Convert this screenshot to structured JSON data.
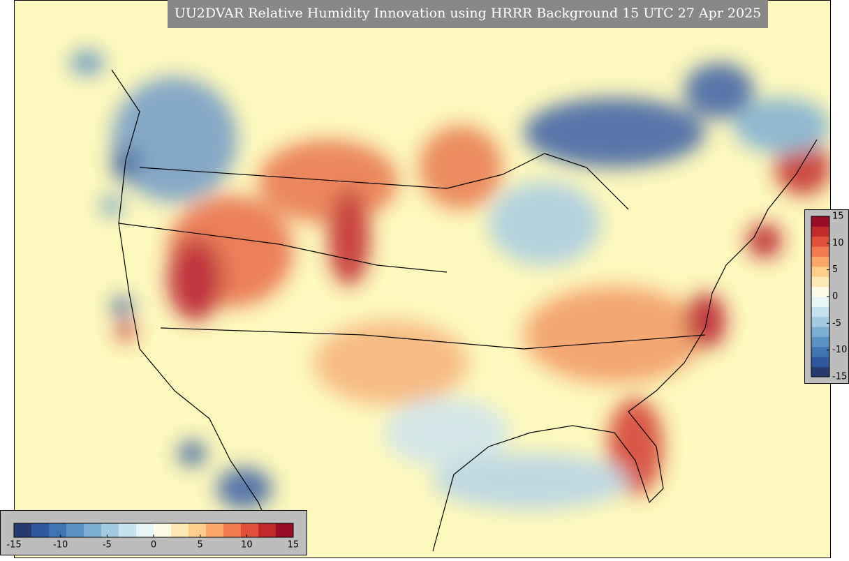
{
  "title": "UU2DVAR Relative Humidity Innovation using HRRR Background 15 UTC 27 Apr 2025",
  "colorbar_right": {
    "orientation": "vertical",
    "range": [
      -15,
      15
    ],
    "ticks": [
      15,
      10,
      5,
      0,
      -5,
      -10,
      -15
    ]
  },
  "colorbar_bottom": {
    "orientation": "horizontal",
    "range": [
      -15,
      15
    ],
    "ticks": [
      -15,
      -10,
      -5,
      0,
      5,
      10,
      15
    ]
  },
  "colormap": [
    "#273b6e",
    "#2f58a0",
    "#3f74b3",
    "#5b92c4",
    "#7dafd4",
    "#a3cbe2",
    "#c6e2ef",
    "#e6f4f6",
    "#fbfbe8",
    "#fde9b5",
    "#fcce8b",
    "#f9a86a",
    "#f27c50",
    "#e04f39",
    "#c22a2c",
    "#980c26"
  ]
}
